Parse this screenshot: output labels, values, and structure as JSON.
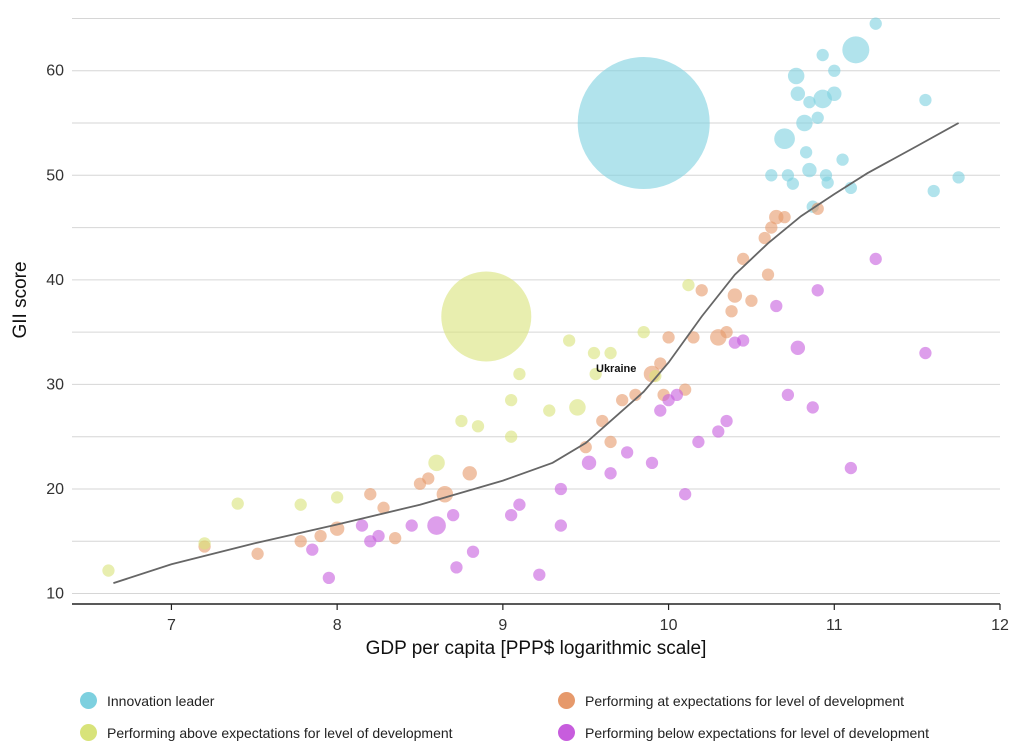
{
  "chart_data": {
    "type": "scatter",
    "xlabel": "GDP per capita [PPP$ logarithmic scale]",
    "ylabel": "GII score",
    "xlim": [
      6.4,
      12
    ],
    "ylim": [
      9,
      66
    ],
    "x_ticks": [
      7,
      8,
      9,
      10,
      11,
      12
    ],
    "y_ticks": [
      10,
      20,
      30,
      40,
      50,
      60
    ],
    "grid": true,
    "legend_position": "bottom",
    "annotations": [
      {
        "text": "Ukraine",
        "x": 9.55,
        "y": 31
      }
    ],
    "series": [
      {
        "name": "Innovation leader",
        "color": "#7dd0df",
        "points": [
          {
            "x": 9.85,
            "y": 55,
            "size": 60
          },
          {
            "x": 11.13,
            "y": 62,
            "size": 10
          },
          {
            "x": 11.25,
            "y": 64.5,
            "size": 3
          },
          {
            "x": 10.77,
            "y": 59.5,
            "size": 5
          },
          {
            "x": 10.93,
            "y": 61.5,
            "size": 3
          },
          {
            "x": 11.0,
            "y": 60,
            "size": 3
          },
          {
            "x": 10.78,
            "y": 57.8,
            "size": 4
          },
          {
            "x": 10.93,
            "y": 57.3,
            "size": 6
          },
          {
            "x": 11.0,
            "y": 57.8,
            "size": 4
          },
          {
            "x": 10.85,
            "y": 57,
            "size": 3
          },
          {
            "x": 11.55,
            "y": 57.2,
            "size": 3
          },
          {
            "x": 10.82,
            "y": 55,
            "size": 5
          },
          {
            "x": 10.7,
            "y": 53.5,
            "size": 7
          },
          {
            "x": 10.9,
            "y": 55.5,
            "size": 3
          },
          {
            "x": 10.83,
            "y": 52.2,
            "size": 3
          },
          {
            "x": 11.05,
            "y": 51.5,
            "size": 3
          },
          {
            "x": 10.85,
            "y": 50.5,
            "size": 4
          },
          {
            "x": 10.62,
            "y": 50,
            "size": 3
          },
          {
            "x": 10.72,
            "y": 50,
            "size": 3
          },
          {
            "x": 10.95,
            "y": 50,
            "size": 3
          },
          {
            "x": 10.75,
            "y": 49.2,
            "size": 3
          },
          {
            "x": 10.96,
            "y": 49.3,
            "size": 3
          },
          {
            "x": 11.1,
            "y": 48.8,
            "size": 3
          },
          {
            "x": 11.6,
            "y": 48.5,
            "size": 3
          },
          {
            "x": 11.75,
            "y": 49.8,
            "size": 3
          },
          {
            "x": 10.87,
            "y": 47,
            "size": 3
          }
        ]
      },
      {
        "name": "Performing at expectations for level of development",
        "color": "#e6996b",
        "points": [
          {
            "x": 7.2,
            "y": 14.5,
            "size": 3
          },
          {
            "x": 7.52,
            "y": 13.8,
            "size": 3
          },
          {
            "x": 7.78,
            "y": 15,
            "size": 3
          },
          {
            "x": 7.9,
            "y": 15.5,
            "size": 3
          },
          {
            "x": 8.0,
            "y": 16.2,
            "size": 4
          },
          {
            "x": 8.2,
            "y": 19.5,
            "size": 3
          },
          {
            "x": 8.28,
            "y": 18.2,
            "size": 3
          },
          {
            "x": 8.35,
            "y": 15.3,
            "size": 3
          },
          {
            "x": 8.5,
            "y": 20.5,
            "size": 3
          },
          {
            "x": 8.55,
            "y": 21,
            "size": 3
          },
          {
            "x": 8.65,
            "y": 19.5,
            "size": 5
          },
          {
            "x": 8.8,
            "y": 21.5,
            "size": 4
          },
          {
            "x": 9.5,
            "y": 24,
            "size": 3
          },
          {
            "x": 9.6,
            "y": 26.5,
            "size": 3
          },
          {
            "x": 9.65,
            "y": 24.5,
            "size": 3
          },
          {
            "x": 9.72,
            "y": 28.5,
            "size": 3
          },
          {
            "x": 9.8,
            "y": 29,
            "size": 3
          },
          {
            "x": 9.9,
            "y": 31,
            "size": 5
          },
          {
            "x": 9.95,
            "y": 32,
            "size": 3
          },
          {
            "x": 9.97,
            "y": 29,
            "size": 3
          },
          {
            "x": 10.0,
            "y": 34.5,
            "size": 3
          },
          {
            "x": 10.1,
            "y": 29.5,
            "size": 3
          },
          {
            "x": 10.15,
            "y": 34.5,
            "size": 3
          },
          {
            "x": 10.2,
            "y": 39,
            "size": 3
          },
          {
            "x": 10.3,
            "y": 34.5,
            "size": 5
          },
          {
            "x": 10.35,
            "y": 35,
            "size": 3
          },
          {
            "x": 10.38,
            "y": 37,
            "size": 3
          },
          {
            "x": 10.4,
            "y": 38.5,
            "size": 4
          },
          {
            "x": 10.45,
            "y": 42,
            "size": 3
          },
          {
            "x": 10.5,
            "y": 38,
            "size": 3
          },
          {
            "x": 10.58,
            "y": 44,
            "size": 3
          },
          {
            "x": 10.6,
            "y": 40.5,
            "size": 3
          },
          {
            "x": 10.62,
            "y": 45,
            "size": 3
          },
          {
            "x": 10.65,
            "y": 46,
            "size": 4
          },
          {
            "x": 10.7,
            "y": 46,
            "size": 3
          },
          {
            "x": 10.9,
            "y": 46.8,
            "size": 3
          }
        ]
      },
      {
        "name": "Performing above expectations for level of development",
        "color": "#d8e37a",
        "points": [
          {
            "x": 8.9,
            "y": 36.5,
            "size": 40
          },
          {
            "x": 6.62,
            "y": 12.2,
            "size": 3
          },
          {
            "x": 7.2,
            "y": 14.8,
            "size": 3
          },
          {
            "x": 7.4,
            "y": 18.6,
            "size": 3
          },
          {
            "x": 7.78,
            "y": 18.5,
            "size": 3
          },
          {
            "x": 8.0,
            "y": 19.2,
            "size": 3
          },
          {
            "x": 8.6,
            "y": 22.5,
            "size": 5
          },
          {
            "x": 8.75,
            "y": 26.5,
            "size": 3
          },
          {
            "x": 8.85,
            "y": 26,
            "size": 3
          },
          {
            "x": 9.05,
            "y": 28.5,
            "size": 3
          },
          {
            "x": 9.05,
            "y": 25,
            "size": 3
          },
          {
            "x": 9.1,
            "y": 31,
            "size": 3
          },
          {
            "x": 9.28,
            "y": 27.5,
            "size": 3
          },
          {
            "x": 9.4,
            "y": 34.2,
            "size": 3
          },
          {
            "x": 9.45,
            "y": 27.8,
            "size": 5
          },
          {
            "x": 9.55,
            "y": 33,
            "size": 3
          },
          {
            "x": 9.56,
            "y": 31,
            "size": 3
          },
          {
            "x": 9.65,
            "y": 33,
            "size": 3
          },
          {
            "x": 9.85,
            "y": 35,
            "size": 3
          },
          {
            "x": 9.92,
            "y": 30.8,
            "size": 3
          },
          {
            "x": 10.12,
            "y": 39.5,
            "size": 3
          }
        ]
      },
      {
        "name": "Performing below expectations for level of development",
        "color": "#c75ddd",
        "points": [
          {
            "x": 7.85,
            "y": 14.2,
            "size": 3
          },
          {
            "x": 7.95,
            "y": 11.5,
            "size": 3
          },
          {
            "x": 8.15,
            "y": 16.5,
            "size": 3
          },
          {
            "x": 8.2,
            "y": 15,
            "size": 3
          },
          {
            "x": 8.25,
            "y": 15.5,
            "size": 3
          },
          {
            "x": 8.45,
            "y": 16.5,
            "size": 3
          },
          {
            "x": 8.6,
            "y": 16.5,
            "size": 6
          },
          {
            "x": 8.7,
            "y": 17.5,
            "size": 3
          },
          {
            "x": 8.72,
            "y": 12.5,
            "size": 3
          },
          {
            "x": 8.82,
            "y": 14,
            "size": 3
          },
          {
            "x": 9.05,
            "y": 17.5,
            "size": 3
          },
          {
            "x": 9.1,
            "y": 18.5,
            "size": 3
          },
          {
            "x": 9.22,
            "y": 11.8,
            "size": 3
          },
          {
            "x": 9.35,
            "y": 16.5,
            "size": 3
          },
          {
            "x": 9.35,
            "y": 20,
            "size": 3
          },
          {
            "x": 9.52,
            "y": 22.5,
            "size": 4
          },
          {
            "x": 9.65,
            "y": 21.5,
            "size": 3
          },
          {
            "x": 9.75,
            "y": 23.5,
            "size": 3
          },
          {
            "x": 9.9,
            "y": 22.5,
            "size": 3
          },
          {
            "x": 9.95,
            "y": 27.5,
            "size": 3
          },
          {
            "x": 10.0,
            "y": 28.5,
            "size": 3
          },
          {
            "x": 10.05,
            "y": 29,
            "size": 3
          },
          {
            "x": 10.1,
            "y": 19.5,
            "size": 3
          },
          {
            "x": 10.18,
            "y": 24.5,
            "size": 3
          },
          {
            "x": 10.3,
            "y": 25.5,
            "size": 3
          },
          {
            "x": 10.35,
            "y": 26.5,
            "size": 3
          },
          {
            "x": 10.4,
            "y": 34,
            "size": 3
          },
          {
            "x": 10.45,
            "y": 34.2,
            "size": 3
          },
          {
            "x": 10.65,
            "y": 37.5,
            "size": 3
          },
          {
            "x": 10.72,
            "y": 29,
            "size": 3
          },
          {
            "x": 10.78,
            "y": 33.5,
            "size": 4
          },
          {
            "x": 10.87,
            "y": 27.8,
            "size": 3
          },
          {
            "x": 10.9,
            "y": 39,
            "size": 3
          },
          {
            "x": 11.1,
            "y": 22,
            "size": 3
          },
          {
            "x": 11.25,
            "y": 42,
            "size": 3
          },
          {
            "x": 11.55,
            "y": 33,
            "size": 3
          }
        ]
      }
    ],
    "trend_line": {
      "x": [
        6.65,
        7.0,
        7.5,
        8.0,
        8.5,
        9.0,
        9.3,
        9.5,
        9.7,
        9.85,
        10.0,
        10.2,
        10.4,
        10.6,
        10.8,
        11.0,
        11.2,
        11.5,
        11.75
      ],
      "y": [
        11,
        12.8,
        14.8,
        16.6,
        18.5,
        20.8,
        22.5,
        24.4,
        27.2,
        29.3,
        32.1,
        36.5,
        40.5,
        43.5,
        46.1,
        48.2,
        50.2,
        52.8,
        55
      ]
    }
  },
  "legend": {
    "items": [
      {
        "label": "Innovation leader",
        "color": "#7dd0df"
      },
      {
        "label": "Performing at expectations for level of development",
        "color": "#e6996b"
      },
      {
        "label": "Performing above expectations for level of development",
        "color": "#d8e37a"
      },
      {
        "label": "Performing below expectations for level of development",
        "color": "#c75ddd"
      }
    ]
  }
}
